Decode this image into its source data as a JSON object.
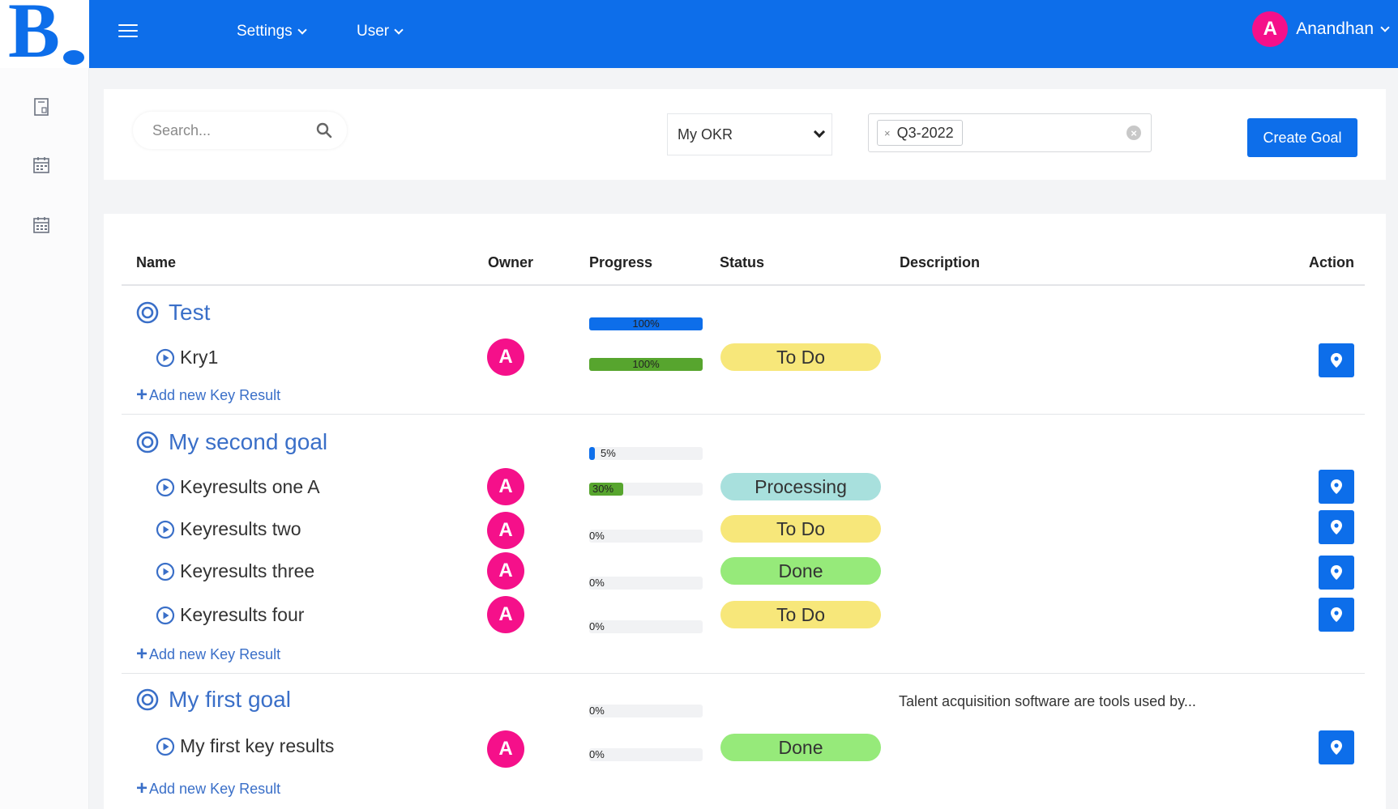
{
  "header": {
    "logo_text": "B",
    "nav": [
      {
        "label": "Settings"
      },
      {
        "label": "User"
      }
    ],
    "user": {
      "initial": "A",
      "name": "Anandhan"
    }
  },
  "filters": {
    "search_placeholder": "Search...",
    "okr_select": "My OKR",
    "quarter_tag": "Q3-2022",
    "create_label": "Create Goal"
  },
  "table": {
    "columns": {
      "name": "Name",
      "owner": "Owner",
      "progress": "Progress",
      "status": "Status",
      "description": "Description",
      "action": "Action"
    },
    "add_kr_label": "Add new Key Result",
    "goals": [
      {
        "name": "Test",
        "progress": 100,
        "progress_label": "100%",
        "description": "",
        "key_results": [
          {
            "name": "Kry1",
            "owner": "A",
            "progress": 100,
            "progress_label": "100%",
            "status": "To Do"
          }
        ]
      },
      {
        "name": "My second goal",
        "progress": 5,
        "progress_label": "5%",
        "description": "",
        "key_results": [
          {
            "name": "Keyresults one A",
            "owner": "A",
            "progress": 30,
            "progress_label": "30%",
            "status": "Processing"
          },
          {
            "name": "Keyresults two",
            "owner": "A",
            "progress": 0,
            "progress_label": "0%",
            "status": "To Do"
          },
          {
            "name": "Keyresults three",
            "owner": "A",
            "progress": 0,
            "progress_label": "0%",
            "status": "Done"
          },
          {
            "name": "Keyresults four",
            "owner": "A",
            "progress": 0,
            "progress_label": "0%",
            "status": "To Do"
          }
        ]
      },
      {
        "name": "My first goal",
        "progress": 0,
        "progress_label": "0%",
        "description": "Talent acquisition software are tools used by...",
        "key_results": [
          {
            "name": "My first key results",
            "owner": "A",
            "progress": 0,
            "progress_label": "0%",
            "status": "Done"
          }
        ]
      }
    ]
  },
  "colors": {
    "primary": "#0d6eea",
    "avatar": "#f5108a",
    "goal_bar": "#0d6eea",
    "kr_bar": "#57a52e",
    "status_todo": "#f7e77a",
    "status_processing": "#a8e0dd",
    "status_done": "#96ea7a"
  }
}
